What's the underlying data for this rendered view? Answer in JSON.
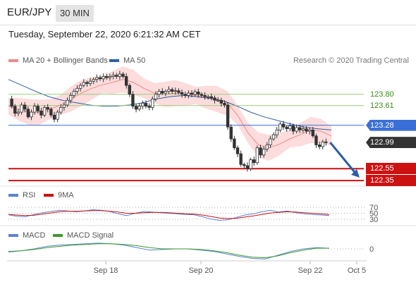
{
  "header": {
    "pair": "EUR/JPY",
    "timeframe": "30 MIN"
  },
  "datetime": "Tuesday, September 22, 2020 6:21:32 AM CET",
  "credit": "Research © 2020 Trading Central",
  "legend_main": [
    {
      "label": "MA 20 + Bollinger Bands",
      "color": "#f08a8a"
    },
    {
      "label": "MA 50",
      "color": "#2e5fa8"
    }
  ],
  "legend_rsi": [
    {
      "label": "RSI",
      "color": "#5b82d6"
    },
    {
      "label": "9MA",
      "color": "#cc1111"
    }
  ],
  "legend_macd": [
    {
      "label": "MACD",
      "color": "#5b82d6"
    },
    {
      "label": "MACD Signal",
      "color": "#3a9a28"
    }
  ],
  "colors": {
    "support": "#cc1111",
    "resistance": "#9ccc7a",
    "pivot": "#3a6fd8",
    "current": "#333333",
    "candle": "#333333"
  },
  "chart_data": [
    {
      "type": "candlestick",
      "title": "EUR/JPY 30 MIN",
      "ylim": [
        122.28,
        124.2
      ],
      "x_ticks": [
        "Sep 18",
        "Sep 20",
        "Sep 22",
        "Oct 5"
      ],
      "levels": [
        {
          "value": 123.8,
          "label": "123.80",
          "kind": "resistance"
        },
        {
          "value": 123.61,
          "label": "123.61",
          "kind": "resistance"
        },
        {
          "value": 123.28,
          "label": "123.28",
          "kind": "pivot"
        },
        {
          "value": 122.99,
          "label": "122.99",
          "kind": "current"
        },
        {
          "value": 122.55,
          "label": "122.55",
          "kind": "support"
        },
        {
          "value": 122.35,
          "label": "122.35",
          "kind": "support"
        }
      ],
      "forecast": {
        "from": 122.99,
        "to": 122.4,
        "direction": "down"
      },
      "price_trace": [
        123.72,
        123.6,
        123.48,
        123.5,
        123.62,
        123.55,
        123.42,
        123.5,
        123.6,
        123.52,
        123.45,
        123.58,
        123.55,
        123.45,
        123.38,
        123.5,
        123.58,
        123.62,
        123.7,
        123.78,
        123.85,
        123.9,
        123.95,
        124.0,
        123.98,
        124.02,
        124.05,
        124.08,
        124.06,
        124.1,
        124.08,
        124.1,
        124.12,
        124.1,
        124.14,
        124.1,
        123.95,
        123.8,
        123.6,
        123.55,
        123.6,
        123.65,
        123.6,
        123.58,
        123.72,
        123.8,
        123.85,
        123.82,
        123.85,
        123.88,
        123.85,
        123.86,
        123.83,
        123.8,
        123.78,
        123.82,
        123.8,
        123.84,
        123.8,
        123.78,
        123.76,
        123.76,
        123.74,
        123.7,
        123.7,
        123.65,
        123.62,
        123.25,
        123.05,
        122.9,
        122.8,
        122.62,
        122.6,
        122.55,
        122.7,
        122.65,
        122.9,
        122.78,
        122.88,
        122.95,
        123.05,
        123.12,
        123.2,
        123.3,
        123.25,
        123.22,
        123.27,
        123.18,
        123.24,
        123.2,
        123.22,
        123.18,
        123.2,
        123.1,
        122.95,
        122.92,
        123.0,
        122.99
      ],
      "ma50_trace": [
        124.05,
        123.95,
        123.85,
        123.76,
        123.7,
        123.66,
        123.62,
        123.6,
        123.6,
        123.62,
        123.66,
        123.72,
        123.76,
        123.78,
        123.76,
        123.73,
        123.69,
        123.6,
        123.5,
        123.42,
        123.36,
        123.3,
        123.25,
        123.22,
        123.2
      ],
      "ma20_trace": [
        123.6,
        123.55,
        123.5,
        123.5,
        123.55,
        123.62,
        123.72,
        123.82,
        123.9,
        123.96,
        124.0,
        124.05,
        124.0,
        123.9,
        123.82,
        123.8,
        123.82,
        123.8,
        123.78,
        123.75,
        123.72,
        123.65,
        123.45,
        123.15,
        122.95,
        122.9,
        122.96,
        123.05,
        123.12,
        123.2,
        123.18,
        123.1
      ]
    },
    {
      "type": "line",
      "title": "RSI",
      "y_ticks": [
        "70",
        "50",
        "30"
      ],
      "ylim": [
        20,
        80
      ],
      "series": [
        {
          "name": "RSI",
          "values": [
            45,
            40,
            38,
            46,
            52,
            56,
            60,
            58,
            55,
            58,
            62,
            60,
            56,
            48,
            42,
            50,
            56,
            54,
            52,
            50,
            48,
            46,
            45,
            38,
            30,
            26,
            28,
            36,
            44,
            48,
            55,
            60,
            54,
            58,
            52,
            48,
            46,
            44,
            42
          ]
        },
        {
          "name": "9MA",
          "values": [
            46,
            44,
            42,
            43,
            47,
            51,
            55,
            57,
            57,
            58,
            59,
            59,
            57,
            54,
            50,
            50,
            52,
            53,
            53,
            52,
            50,
            48,
            47,
            44,
            39,
            34,
            32,
            33,
            37,
            41,
            46,
            51,
            53,
            55,
            54,
            52,
            50,
            48,
            46
          ]
        }
      ]
    },
    {
      "type": "line",
      "title": "MACD",
      "y_ticks": [
        "0"
      ],
      "series": [
        {
          "name": "MACD",
          "values": [
            -0.05,
            -0.03,
            0.0,
            0.04,
            0.06,
            0.07,
            0.08,
            0.09,
            0.08,
            0.06,
            0.02,
            -0.02,
            -0.01,
            0.0,
            0.0,
            -0.02,
            -0.04,
            -0.08,
            -0.12,
            -0.15,
            -0.16,
            -0.1,
            -0.04,
            0.0,
            0.02,
            0.01
          ]
        },
        {
          "name": "MACD Signal",
          "values": [
            -0.04,
            -0.03,
            -0.01,
            0.02,
            0.04,
            0.06,
            0.07,
            0.08,
            0.08,
            0.07,
            0.05,
            0.02,
            0.0,
            0.0,
            0.0,
            -0.01,
            -0.03,
            -0.06,
            -0.1,
            -0.13,
            -0.14,
            -0.11,
            -0.06,
            -0.02,
            0.01,
            0.01
          ]
        }
      ]
    }
  ]
}
